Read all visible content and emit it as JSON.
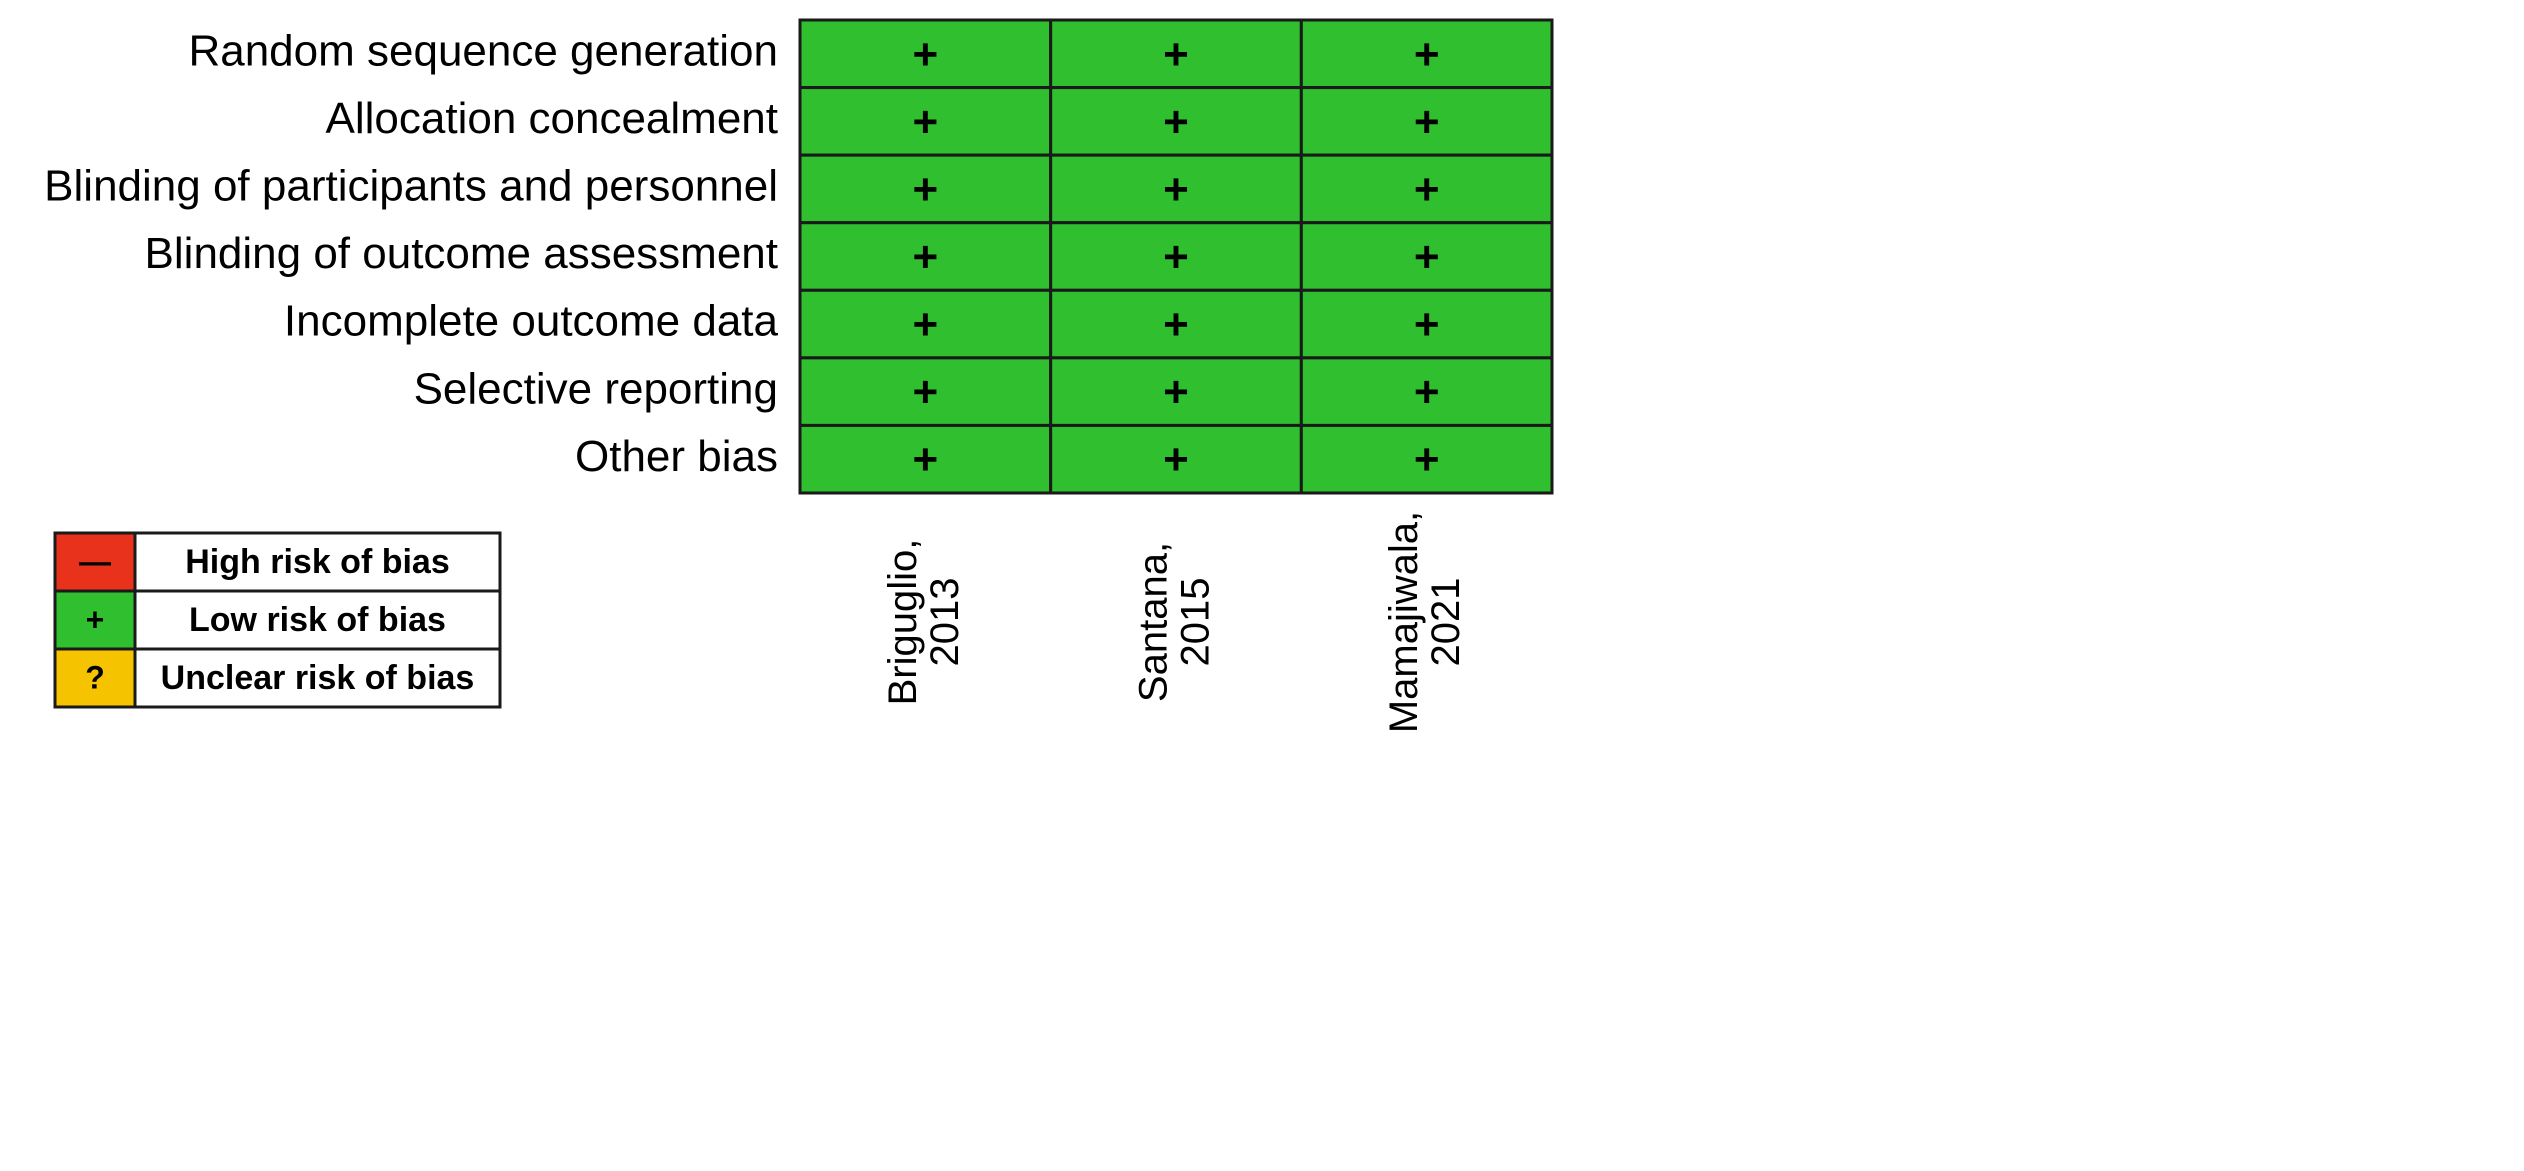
{
  "rows": [
    "Random sequence generation",
    "Allocation concealment",
    "Blinding of participants and personnel",
    "Blinding of outcome assessment",
    "Incomplete outcome data",
    "Selective reporting",
    "Other bias"
  ],
  "studies": [
    {
      "name": "Briguglio,",
      "year": "2013"
    },
    {
      "name": "Santana,",
      "year": "2015"
    },
    {
      "name": "Mamajiwala,",
      "year": "2021"
    }
  ],
  "cells": [
    [
      "+",
      "+",
      "+"
    ],
    [
      "+",
      "+",
      "+"
    ],
    [
      "+",
      "+",
      "+"
    ],
    [
      "+",
      "+",
      "+"
    ],
    [
      "+",
      "+",
      "+"
    ],
    [
      "+",
      "+",
      "+"
    ],
    [
      "+",
      "+",
      "+"
    ]
  ],
  "legend": [
    {
      "symbol": "—",
      "label": "High risk of bias",
      "color": "#e8321c"
    },
    {
      "symbol": "+",
      "label": "Low risk of bias",
      "color": "#2fbf2f"
    },
    {
      "symbol": "?",
      "label": "Unclear risk of bias",
      "color": "#f6c300"
    }
  ]
}
